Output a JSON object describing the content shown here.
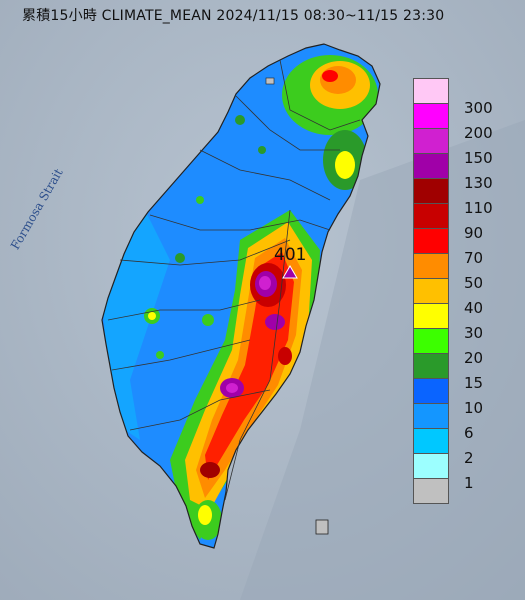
{
  "title": "累積15小時 CLIMATE_MEAN 2024/11/15 08:30~11/15 23:30",
  "strait_label": "Formosa Strait",
  "max_value_label": "401",
  "legend": {
    "colors": [
      "#ffc8f5",
      "#ff00ff",
      "#d020d0",
      "#a000a8",
      "#a00000",
      "#c80000",
      "#ff0000",
      "#ff8c00",
      "#ffc000",
      "#ffff00",
      "#3cff00",
      "#2a9a2a",
      "#0a64ff",
      "#1496ff",
      "#00c8ff",
      "#9cffff",
      "#c0c0c0"
    ],
    "labels": [
      "300",
      "200",
      "150",
      "130",
      "110",
      "90",
      "70",
      "50",
      "40",
      "30",
      "20",
      "15",
      "10",
      "6",
      "2",
      "1"
    ]
  }
}
